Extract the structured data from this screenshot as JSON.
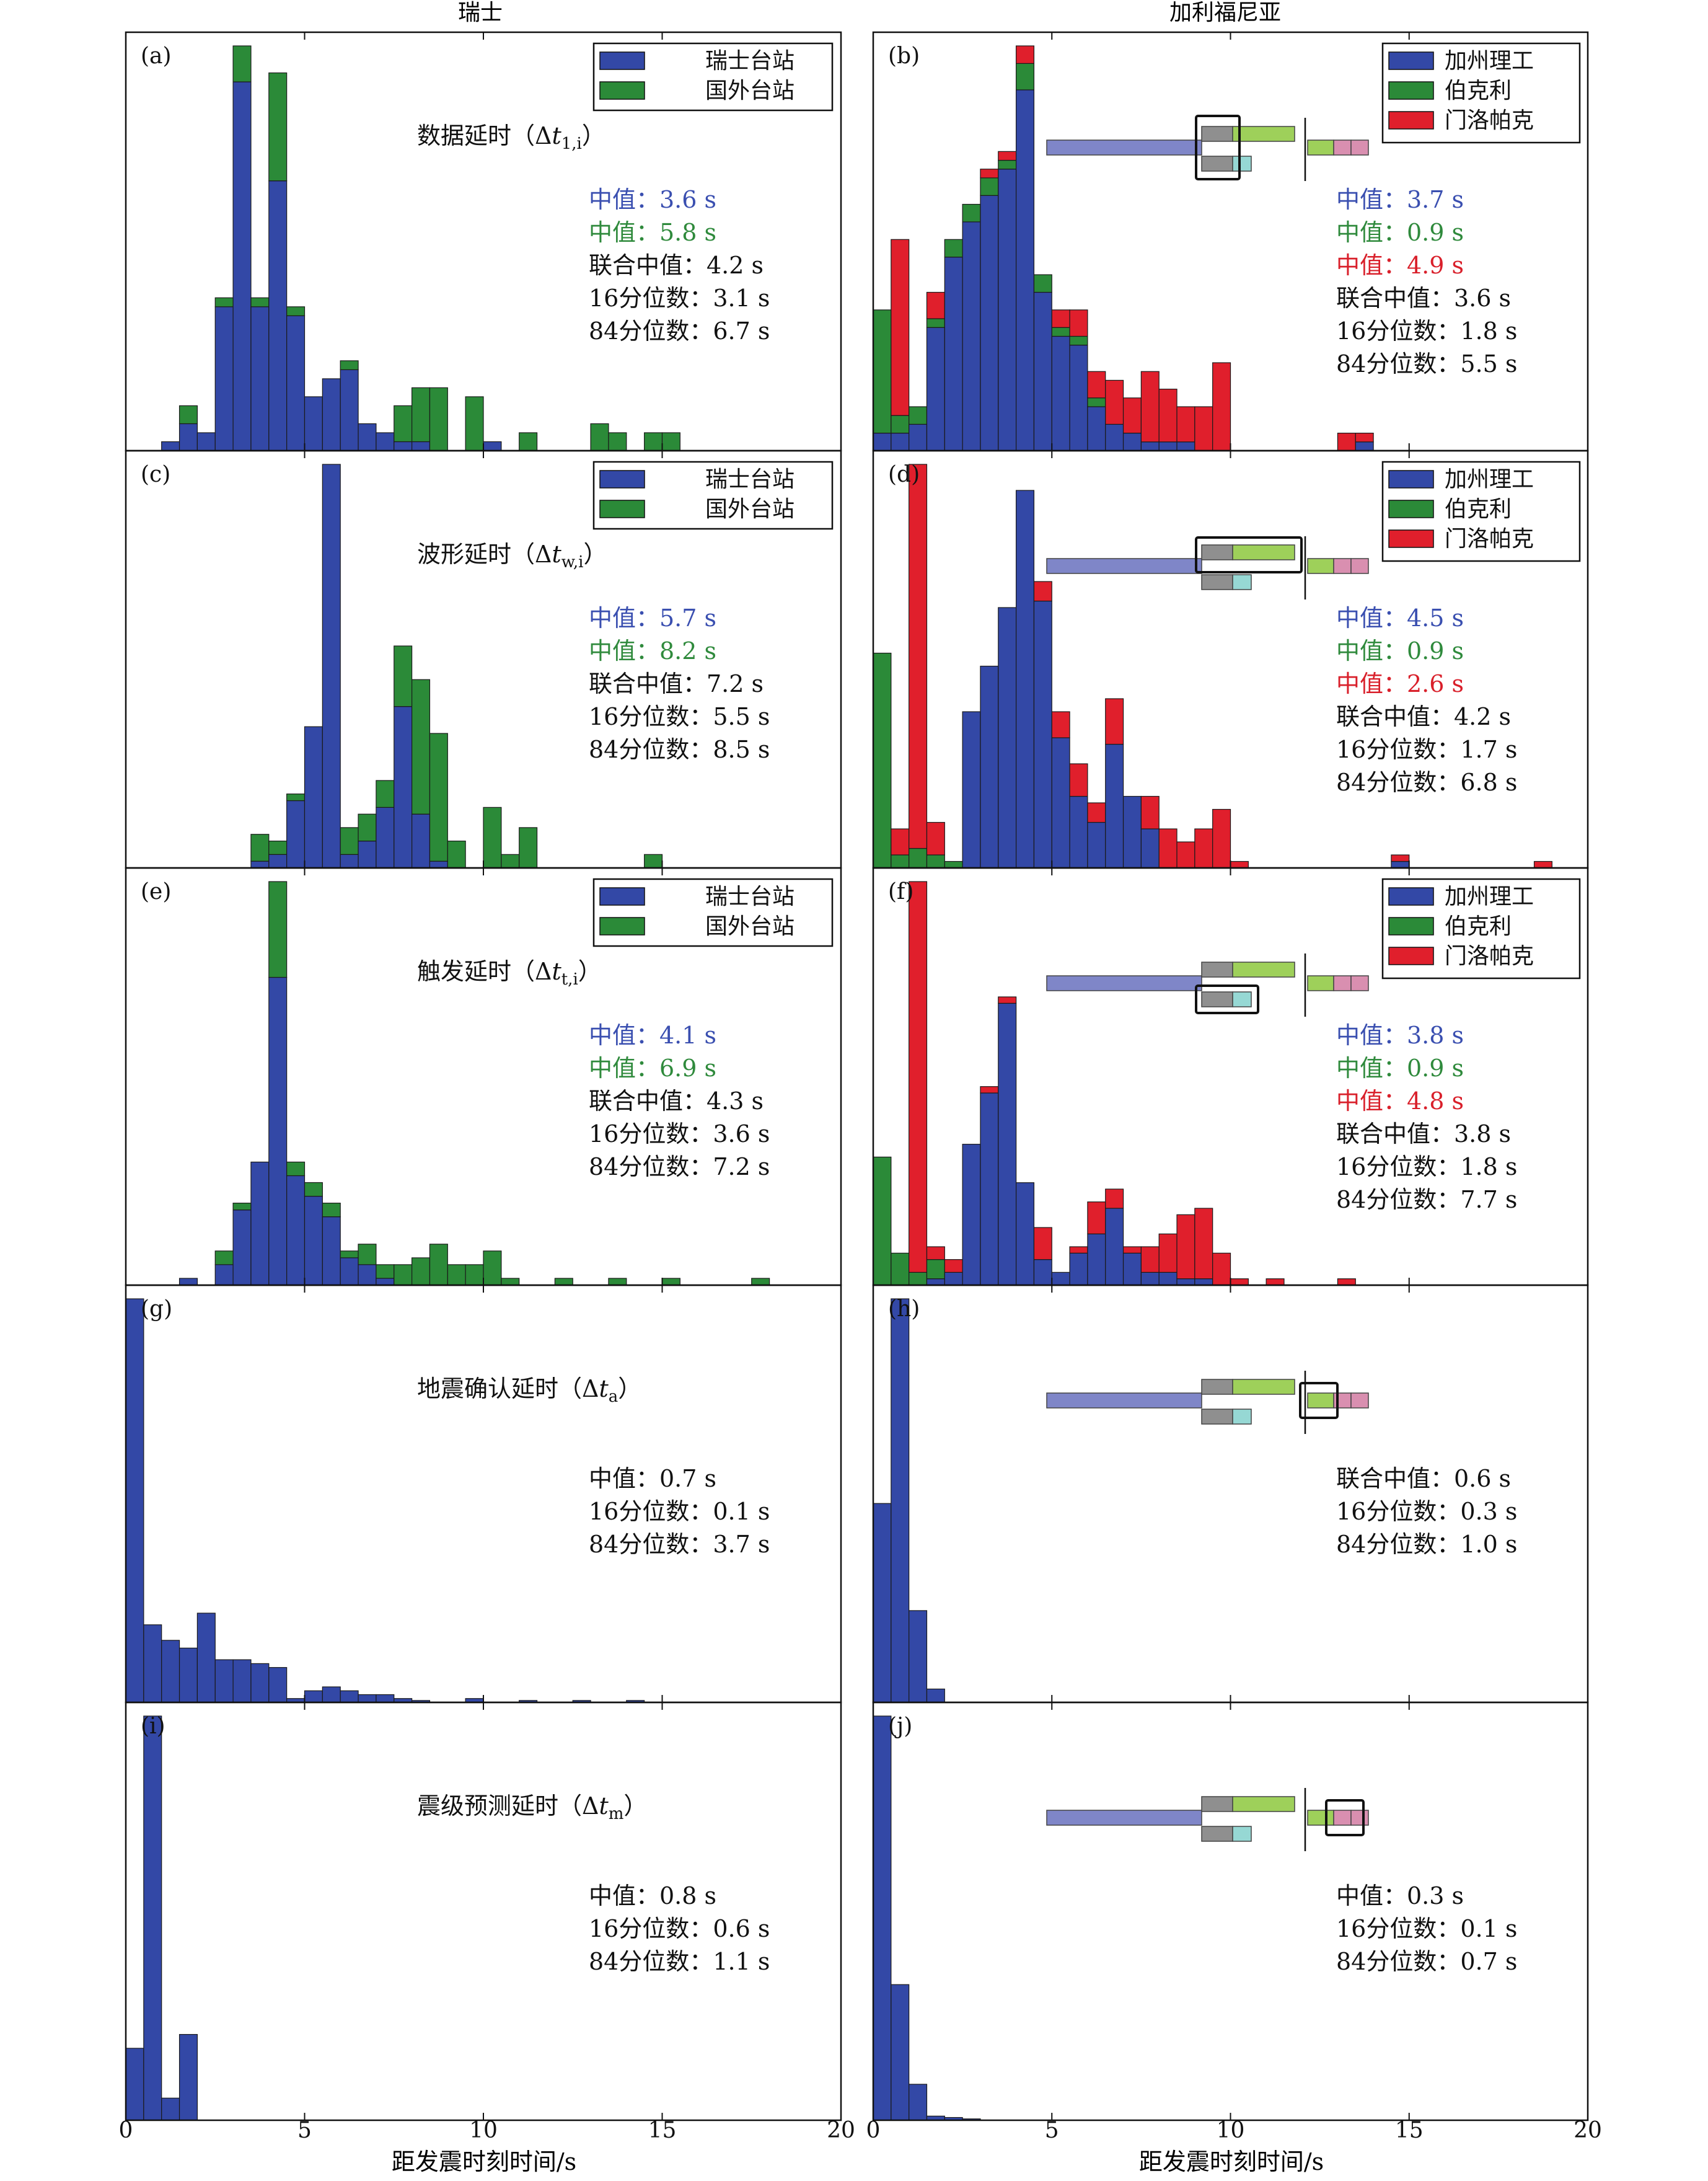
{
  "columns": {
    "left_title": "瑞士",
    "right_title": "加利福尼亚"
  },
  "xaxis": {
    "label": "距发震时刻时间/s",
    "ticks_left": [
      "0",
      "5",
      "10",
      "15",
      "20"
    ],
    "ticks_right": [
      "0",
      "5",
      "10",
      "15",
      "20"
    ],
    "tick_values": [
      0,
      5,
      10,
      15,
      20
    ]
  },
  "legends": {
    "swiss": [
      "瑞士台站",
      "国外台站"
    ],
    "california": [
      "加州理工",
      "伯克利",
      "门洛帕克"
    ]
  },
  "colors": {
    "blue": "#3348a6",
    "green": "#2b8a38",
    "red": "#e01f2c",
    "text_blue": "#3a4fb0",
    "text_green": "#2f8a3c",
    "text_red": "#d9202b",
    "pipe_blue": "#7f86c8",
    "pipe_gray": "#8f8f8f",
    "pipe_green": "#9ed05a",
    "pipe_teal": "#96d8d4",
    "pipe_pink": "#d98fb0"
  },
  "chart_data": [
    {
      "id": "a",
      "label": "(a)",
      "type": "bar",
      "stacked": true,
      "xlim": [
        0,
        20
      ],
      "title": "数据延时（Δt₁,ᵢ）",
      "bin_width": 0.5,
      "bins_start": [
        1.0,
        1.5,
        2.0,
        2.5,
        3.0,
        3.5,
        4.0,
        4.5,
        5.0,
        5.5,
        6.0,
        6.5,
        7.0,
        7.5,
        8.0,
        8.5,
        9.0,
        9.5,
        10.0,
        10.5,
        11.0,
        11.5,
        12.0,
        12.5,
        13.0,
        13.5,
        14.0,
        14.5,
        15.0
      ],
      "series": [
        {
          "name": "瑞士台站",
          "values": [
            1,
            3,
            2,
            16,
            41,
            16,
            30,
            15,
            6,
            8,
            9,
            3,
            2,
            1,
            1,
            0,
            0,
            0,
            1,
            0,
            0,
            0,
            0,
            0,
            0,
            0,
            0,
            0,
            0
          ]
        },
        {
          "name": "国外台站",
          "values": [
            0,
            2,
            0,
            1,
            4,
            1,
            12,
            1,
            0,
            0,
            1,
            0,
            0,
            4,
            6,
            7,
            0,
            6,
            0,
            0,
            2,
            0,
            0,
            0,
            3,
            2,
            0,
            2,
            2
          ]
        }
      ],
      "annotations": [
        {
          "text": "中值：3.6 s",
          "color": "blue"
        },
        {
          "text": "中值：5.8 s",
          "color": "green"
        },
        {
          "text": "联合中值：4.2 s",
          "color": "black"
        },
        {
          "text": "16分位数：3.1 s",
          "color": "black"
        },
        {
          "text": "84分位数：6.7 s",
          "color": "black"
        }
      ]
    },
    {
      "id": "b",
      "label": "(b)",
      "type": "bar",
      "stacked": true,
      "xlim": [
        0,
        20
      ],
      "bin_width": 0.5,
      "bins_start": [
        0.0,
        0.5,
        1.0,
        1.5,
        2.0,
        2.5,
        3.0,
        3.5,
        4.0,
        4.5,
        5.0,
        5.5,
        6.0,
        6.5,
        7.0,
        7.5,
        8.0,
        8.5,
        9.0,
        9.5,
        10.0,
        13.0,
        13.5
      ],
      "series": [
        {
          "name": "加州理工",
          "values": [
            2,
            2,
            3,
            14,
            22,
            26,
            29,
            32,
            41,
            18,
            13,
            12,
            5,
            3,
            2,
            1,
            1,
            1,
            0,
            0,
            0,
            0,
            1
          ]
        },
        {
          "name": "伯克利",
          "values": [
            14,
            2,
            2,
            1,
            2,
            2,
            2,
            1,
            3,
            2,
            1,
            1,
            1,
            0,
            0,
            0,
            0,
            0,
            0,
            0,
            0,
            0,
            0
          ]
        },
        {
          "name": "门洛帕克",
          "values": [
            0,
            20,
            0,
            3,
            0,
            0,
            1,
            1,
            2,
            0,
            2,
            3,
            3,
            5,
            4,
            8,
            6,
            4,
            5,
            10,
            0,
            2,
            1
          ]
        }
      ],
      "annotations": [
        {
          "text": "中值：3.7 s",
          "color": "blue"
        },
        {
          "text": "中值：0.9 s",
          "color": "green"
        },
        {
          "text": "中值：4.9 s",
          "color": "red"
        },
        {
          "text": "联合中值：3.6 s",
          "color": "black"
        },
        {
          "text": "16分位数：1.8 s",
          "color": "black"
        },
        {
          "text": "84分位数：5.5 s",
          "color": "black"
        }
      ]
    },
    {
      "id": "c",
      "label": "(c)",
      "type": "bar",
      "stacked": true,
      "xlim": [
        0,
        20
      ],
      "title": "波形延时（Δtᵥ,ᵢ）",
      "bin_width": 0.5,
      "bins_start": [
        3.5,
        4.0,
        4.5,
        5.0,
        5.5,
        6.0,
        6.5,
        7.0,
        7.5,
        8.0,
        8.5,
        9.0,
        9.5,
        10.0,
        10.5,
        11.0,
        14.5
      ],
      "series": [
        {
          "name": "瑞士台站",
          "values": [
            1,
            2,
            10,
            21,
            60,
            2,
            4,
            9,
            24,
            8,
            1,
            0,
            0,
            0,
            0,
            0,
            0
          ]
        },
        {
          "name": "国外台站",
          "values": [
            4,
            2,
            1,
            0,
            0,
            4,
            4,
            4,
            9,
            20,
            19,
            4,
            0,
            9,
            2,
            6,
            2
          ]
        }
      ],
      "annotations": [
        {
          "text": "中值：5.7 s",
          "color": "blue"
        },
        {
          "text": "中值：8.2 s",
          "color": "green"
        },
        {
          "text": "联合中值：7.2 s",
          "color": "black"
        },
        {
          "text": "16分位数：5.5 s",
          "color": "black"
        },
        {
          "text": "84分位数：8.5 s",
          "color": "black"
        }
      ]
    },
    {
      "id": "d",
      "label": "(d)",
      "type": "bar",
      "stacked": true,
      "xlim": [
        0,
        20
      ],
      "bin_width": 0.5,
      "bins_start": [
        0.0,
        0.5,
        1.0,
        1.5,
        2.0,
        2.5,
        3.0,
        3.5,
        4.0,
        4.5,
        5.0,
        5.5,
        6.0,
        6.5,
        7.0,
        7.5,
        8.0,
        8.5,
        9.0,
        9.5,
        10.0,
        14.5,
        18.5
      ],
      "series": [
        {
          "name": "加州理工",
          "values": [
            0,
            0,
            0,
            0,
            0,
            24,
            31,
            40,
            58,
            41,
            20,
            11,
            7,
            19,
            11,
            6,
            0,
            0,
            0,
            0,
            0,
            1,
            0
          ]
        },
        {
          "name": "伯克利",
          "values": [
            33,
            2,
            3,
            2,
            1,
            0,
            0,
            0,
            0,
            0,
            0,
            0,
            0,
            0,
            0,
            0,
            0,
            0,
            0,
            0,
            0,
            0,
            0
          ]
        },
        {
          "name": "门洛帕克",
          "values": [
            0,
            4,
            59,
            5,
            0,
            0,
            0,
            0,
            0,
            3,
            4,
            5,
            3,
            7,
            0,
            5,
            6,
            4,
            6,
            9,
            1,
            1,
            1
          ]
        }
      ],
      "annotations": [
        {
          "text": "中值：4.5 s",
          "color": "blue"
        },
        {
          "text": "中值：0.9 s",
          "color": "green"
        },
        {
          "text": "中值：2.6 s",
          "color": "red"
        },
        {
          "text": "联合中值：4.2 s",
          "color": "black"
        },
        {
          "text": "16分位数：1.7 s",
          "color": "black"
        },
        {
          "text": "84分位数：6.8 s",
          "color": "black"
        }
      ]
    },
    {
      "id": "e",
      "label": "(e)",
      "type": "bar",
      "stacked": true,
      "xlim": [
        0,
        20
      ],
      "title": "触发延时（Δtₜ,ᵢ）",
      "bin_width": 0.5,
      "bins_start": [
        1.5,
        2.5,
        3.0,
        3.5,
        4.0,
        4.5,
        5.0,
        5.5,
        6.0,
        6.5,
        7.0,
        7.5,
        8.0,
        8.5,
        9.0,
        9.5,
        10.0,
        10.5,
        12.0,
        13.5,
        15.0,
        17.5
      ],
      "series": [
        {
          "name": "瑞士台站",
          "values": [
            1,
            3,
            11,
            18,
            45,
            16,
            13,
            10,
            4,
            3,
            1,
            0,
            0,
            0,
            0,
            0,
            0,
            0,
            0,
            0,
            0,
            0
          ]
        },
        {
          "name": "国外台站",
          "values": [
            0,
            2,
            1,
            0,
            14,
            2,
            2,
            2,
            1,
            3,
            2,
            3,
            4,
            6,
            3,
            3,
            5,
            1,
            1,
            1,
            1,
            1
          ]
        }
      ],
      "annotations": [
        {
          "text": "中值：4.1 s",
          "color": "blue"
        },
        {
          "text": "中值：6.9 s",
          "color": "green"
        },
        {
          "text": "联合中值：4.3 s",
          "color": "black"
        },
        {
          "text": "16分位数：3.6 s",
          "color": "black"
        },
        {
          "text": "84分位数：7.2 s",
          "color": "black"
        }
      ]
    },
    {
      "id": "f",
      "label": "(f)",
      "type": "bar",
      "stacked": true,
      "xlim": [
        0,
        20
      ],
      "bin_width": 0.5,
      "bins_start": [
        0.0,
        0.5,
        1.0,
        1.5,
        2.0,
        2.5,
        3.0,
        3.5,
        4.0,
        4.5,
        5.0,
        5.5,
        6.0,
        6.5,
        7.0,
        7.5,
        8.0,
        8.5,
        9.0,
        9.5,
        10.0,
        11.0,
        13.0
      ],
      "series": [
        {
          "name": "加州理工",
          "values": [
            0,
            0,
            0,
            1,
            2,
            22,
            30,
            44,
            16,
            4,
            2,
            5,
            8,
            12,
            5,
            2,
            2,
            1,
            1,
            0,
            0,
            0,
            0
          ]
        },
        {
          "name": "伯克利",
          "values": [
            20,
            5,
            2,
            3,
            0,
            0,
            0,
            0,
            0,
            0,
            0,
            0,
            0,
            0,
            0,
            0,
            0,
            0,
            0,
            0,
            0,
            0,
            0
          ]
        },
        {
          "name": "门洛帕克",
          "values": [
            0,
            0,
            61,
            2,
            2,
            0,
            1,
            1,
            0,
            5,
            0,
            1,
            5,
            3,
            1,
            4,
            6,
            10,
            11,
            5,
            1,
            1,
            1
          ]
        }
      ],
      "annotations": [
        {
          "text": "中值：3.8 s",
          "color": "blue"
        },
        {
          "text": "中值：0.9 s",
          "color": "green"
        },
        {
          "text": "中值：4.8 s",
          "color": "red"
        },
        {
          "text": "联合中值：3.8 s",
          "color": "black"
        },
        {
          "text": "16分位数：1.8 s",
          "color": "black"
        },
        {
          "text": "84分位数：7.7 s",
          "color": "black"
        }
      ]
    },
    {
      "id": "g",
      "label": "(g)",
      "type": "bar",
      "stacked": true,
      "xlim": [
        0,
        20
      ],
      "title": "地震确认延时（Δtₐ）",
      "bin_width": 0.5,
      "bins_start": [
        0.0,
        0.5,
        1.0,
        1.5,
        2.0,
        2.5,
        3.0,
        3.5,
        4.0,
        4.5,
        5.0,
        5.5,
        6.0,
        6.5,
        7.0,
        7.5,
        8.0,
        9.5,
        11.0,
        12.5,
        14.0
      ],
      "series": [
        {
          "name": "瑞士台站",
          "values": [
            104,
            20,
            16,
            14,
            23,
            11,
            11,
            10,
            9,
            1,
            3,
            4,
            3,
            2,
            2,
            1,
            0.5,
            1,
            0.5,
            0.5,
            0.5
          ]
        }
      ],
      "annotations": [
        {
          "text": "中值：0.7 s",
          "color": "black"
        },
        {
          "text": "16分位数：0.1 s",
          "color": "black"
        },
        {
          "text": "84分位数：3.7 s",
          "color": "black"
        }
      ]
    },
    {
      "id": "h",
      "label": "(h)",
      "type": "bar",
      "stacked": true,
      "xlim": [
        0,
        20
      ],
      "bin_width": 0.5,
      "bins_start": [
        0.0,
        0.5,
        1.0,
        1.5
      ],
      "series": [
        {
          "name": "加州理工",
          "values": [
            104,
            211,
            48,
            7
          ]
        }
      ],
      "annotations": [
        {
          "text": "联合中值：0.6 s",
          "color": "black"
        },
        {
          "text": "16分位数：0.3 s",
          "color": "black"
        },
        {
          "text": "84分位数：1.0 s",
          "color": "black"
        }
      ]
    },
    {
      "id": "i",
      "label": "(i)",
      "type": "bar",
      "stacked": true,
      "xlim": [
        0,
        20
      ],
      "title": "震级预测延时（Δtₘ）",
      "bin_width": 0.5,
      "bins_start": [
        0.0,
        0.5,
        1.0,
        1.5
      ],
      "series": [
        {
          "name": "瑞士台站",
          "values": [
            52,
            292,
            16,
            62
          ]
        }
      ],
      "annotations": [
        {
          "text": "中值：0.8 s",
          "color": "black"
        },
        {
          "text": "16分位数：0.6 s",
          "color": "black"
        },
        {
          "text": "84分位数：1.1 s",
          "color": "black"
        }
      ]
    },
    {
      "id": "j",
      "label": "(j)",
      "type": "bar",
      "stacked": true,
      "xlim": [
        0,
        20
      ],
      "bin_width": 0.5,
      "bins_start": [
        0.0,
        0.5,
        1.0,
        1.5,
        2.0,
        2.5
      ],
      "series": [
        {
          "name": "加州理工",
          "values": [
            292,
            98,
            26,
            3,
            2,
            1
          ]
        }
      ],
      "annotations": [
        {
          "text": "中值：0.3 s",
          "color": "black"
        },
        {
          "text": "16分位数：0.1 s",
          "color": "black"
        },
        {
          "text": "84分位数：0.7 s",
          "color": "black"
        }
      ]
    }
  ]
}
